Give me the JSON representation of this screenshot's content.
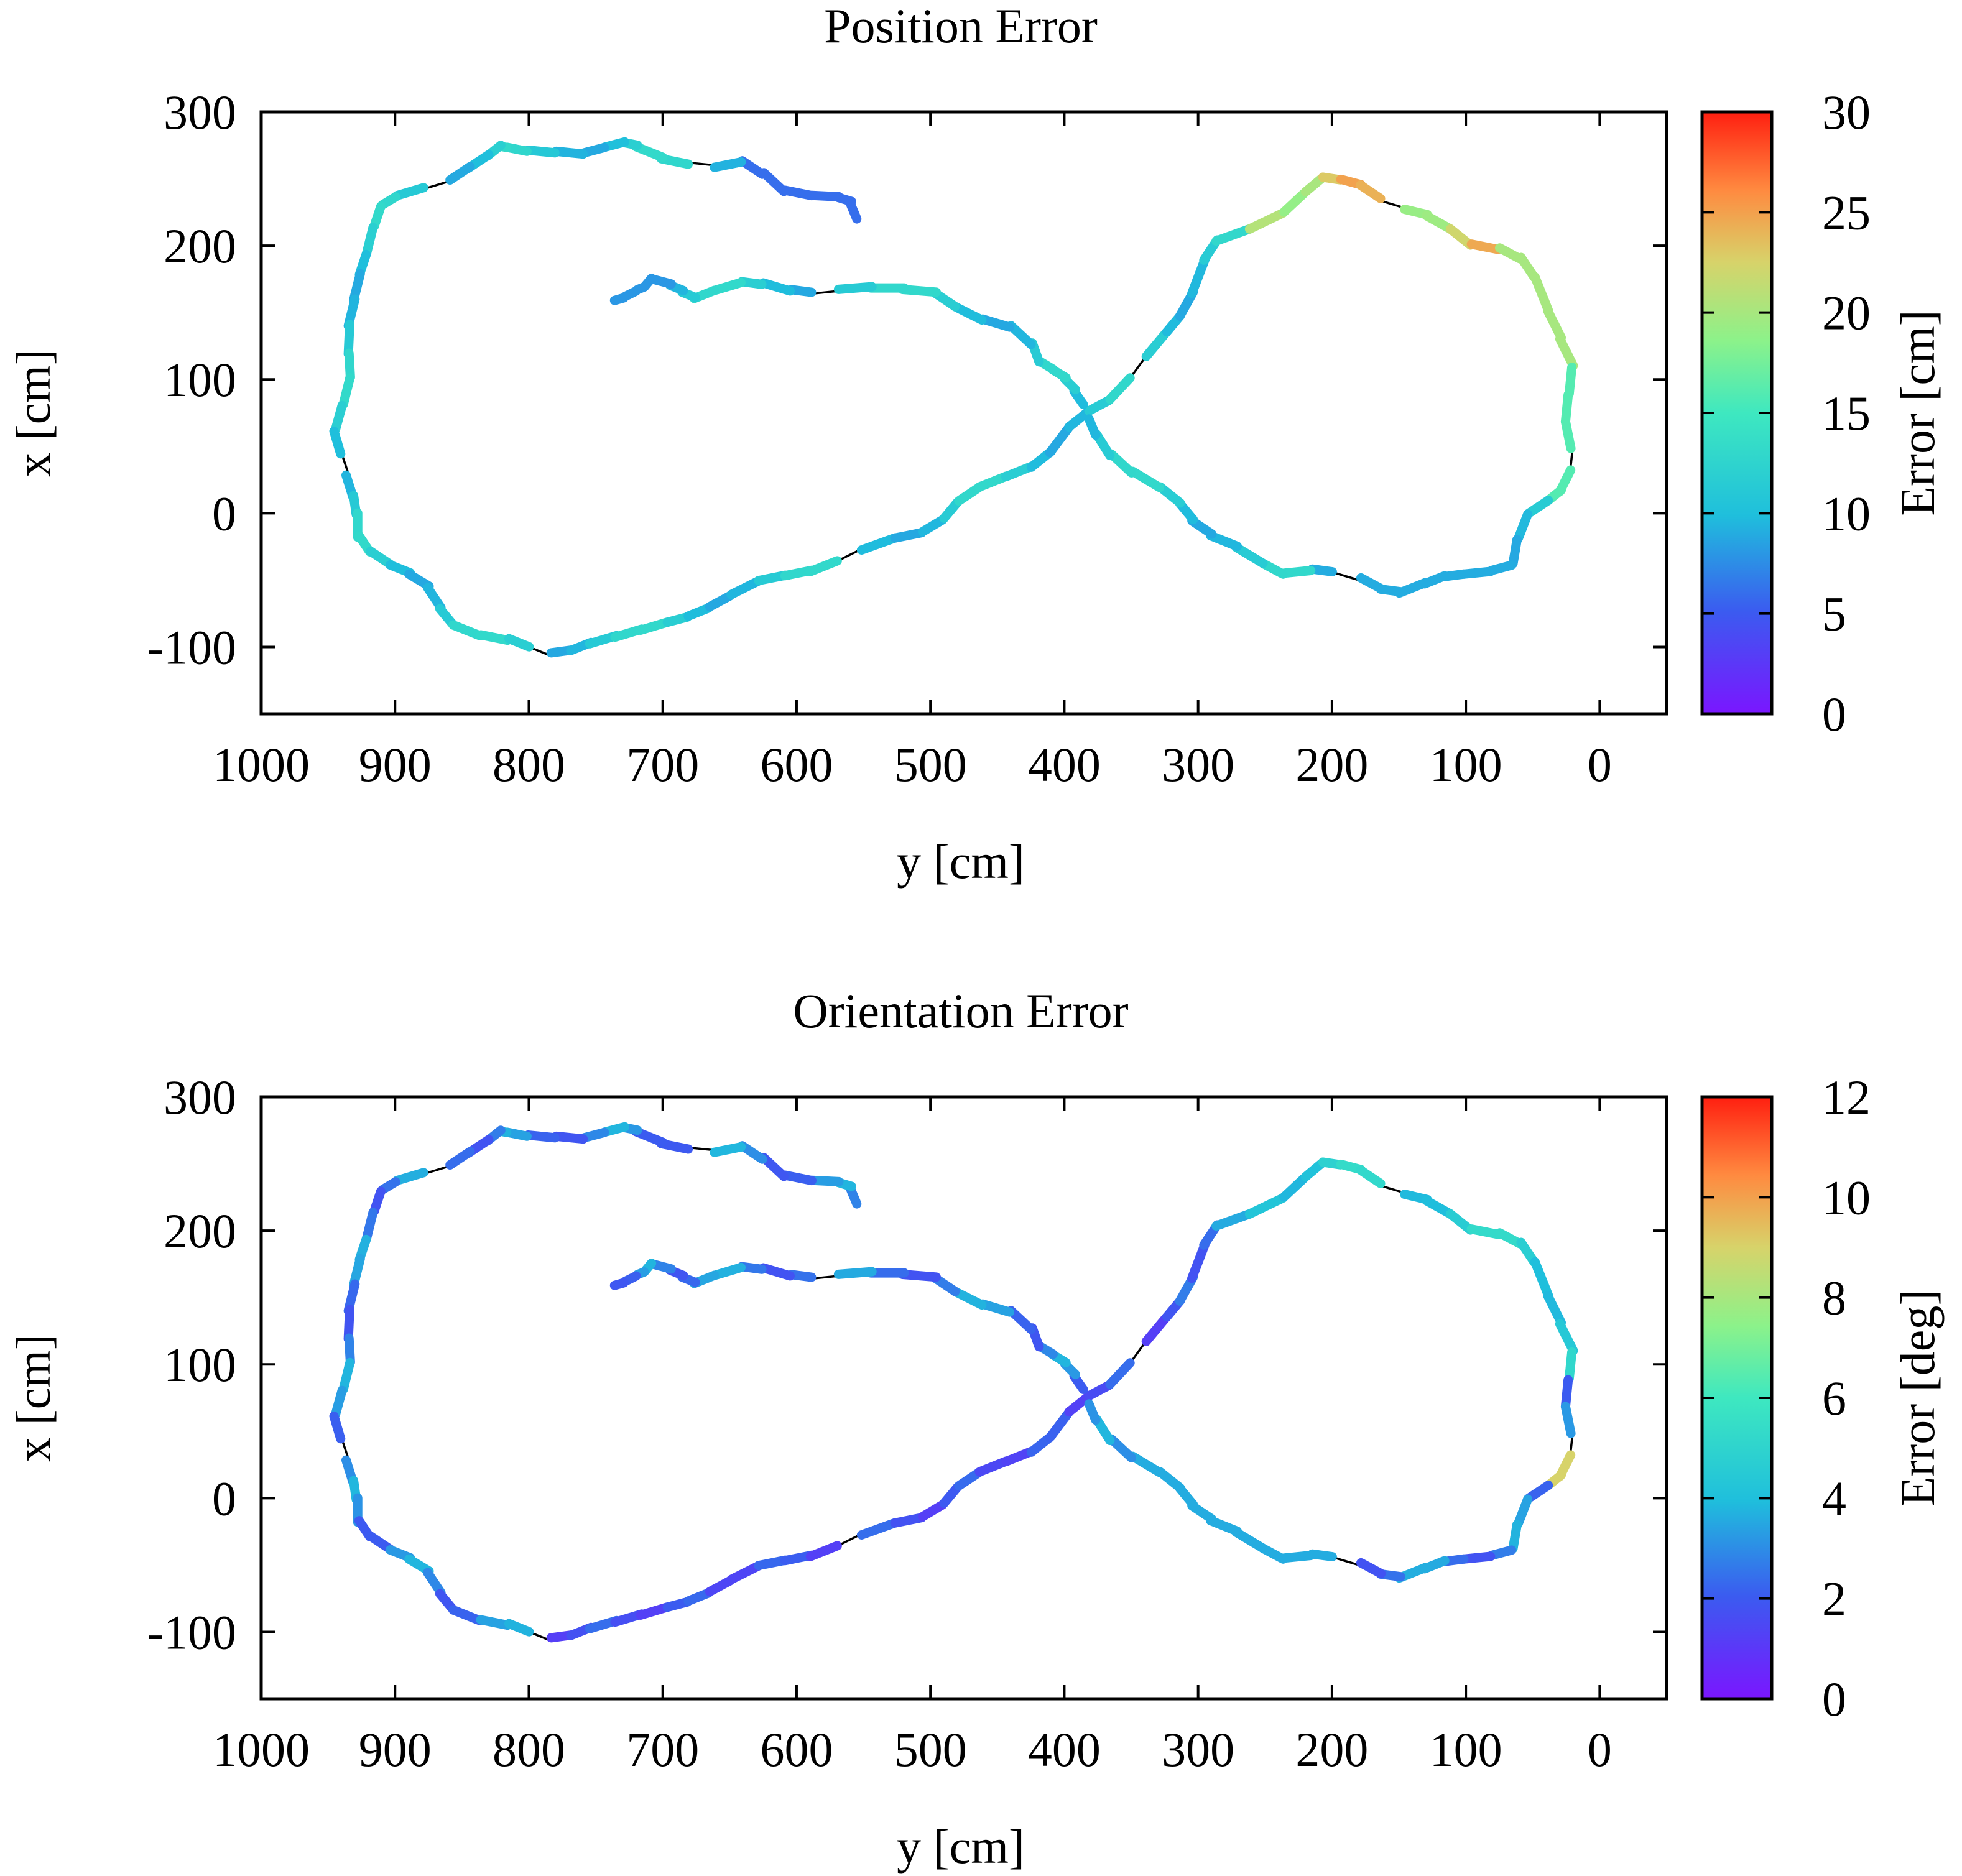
{
  "chart_data": [
    {
      "type": "scatter",
      "title": "Position Error",
      "xlabel": "y [cm]",
      "ylabel": "x [cm]",
      "xlim": [
        1000,
        -50
      ],
      "ylim": [
        -150,
        300
      ],
      "xticks": [
        "1000",
        "900",
        "800",
        "700",
        "600",
        "500",
        "400",
        "300",
        "200",
        "100",
        "0"
      ],
      "yticks": [
        "300",
        "200",
        "100",
        "0",
        "-100"
      ],
      "colorbar": {
        "label": "Error [cm]",
        "range": [
          0,
          30
        ],
        "ticks": [
          "30",
          "25",
          "20",
          "15",
          "10",
          "5",
          "0"
        ]
      },
      "series": [
        {
          "name": "ground truth path",
          "style": "thin black line",
          "shape": "figure-eight trajectory"
        },
        {
          "name": "estimated path colored by position error",
          "segments": [
            {
              "from_y": 555,
              "to_y": 730,
              "x_range": [
                160,
                280
              ],
              "error": 10
            },
            {
              "from_y": 730,
              "to_y": 940,
              "x_range": [
                -110,
                280
              ],
              "error": 10
            },
            {
              "from_y": 780,
              "to_y": 380,
              "x_range": [
                -110,
                90
              ],
              "error": 12
            },
            {
              "from_y": 380,
              "to_y": 220,
              "x_range": [
                90,
                255
              ],
              "error": 14
            },
            {
              "from_y": 210,
              "to_y": 100,
              "x_range": [
                200,
                255
              ],
              "error": 24
            },
            {
              "from_y": 100,
              "to_y": 60,
              "x_range": [
                180,
                200
              ],
              "error": 22
            },
            {
              "from_y": 60,
              "to_y": 15,
              "x_range": [
                -60,
                180
              ],
              "error": 12
            },
            {
              "from_y": 15,
              "to_y": 380,
              "x_range": [
                -60,
                90
              ],
              "error": 9
            },
            {
              "from_y": 380,
              "to_y": 730,
              "x_range": [
                90,
                175
              ],
              "error": 9
            }
          ]
        }
      ]
    },
    {
      "type": "scatter",
      "title": "Orientation Error",
      "xlabel": "y [cm]",
      "ylabel": "x [cm]",
      "xlim": [
        1000,
        -50
      ],
      "ylim": [
        -150,
        300
      ],
      "xticks": [
        "1000",
        "900",
        "800",
        "700",
        "600",
        "500",
        "400",
        "300",
        "200",
        "100",
        "0"
      ],
      "yticks": [
        "300",
        "200",
        "100",
        "0",
        "-100"
      ],
      "colorbar": {
        "label": "Error [deg]",
        "range": [
          0,
          12
        ],
        "ticks": [
          "12",
          "10",
          "8",
          "6",
          "4",
          "2",
          "0"
        ]
      },
      "series": [
        {
          "name": "ground truth path",
          "style": "thin black line",
          "shape": "figure-eight trajectory"
        },
        {
          "name": "estimated path colored by orientation error",
          "segments": [
            {
              "from_y": 555,
              "to_y": 730,
              "x_range": [
                160,
                280
              ],
              "error": 2.5
            },
            {
              "from_y": 730,
              "to_y": 940,
              "x_range": [
                -110,
                280
              ],
              "error": 3
            },
            {
              "from_y": 780,
              "to_y": 380,
              "x_range": [
                -110,
                90
              ],
              "error": 1.5
            },
            {
              "from_y": 380,
              "to_y": 220,
              "x_range": [
                90,
                255
              ],
              "error": 2.5
            },
            {
              "from_y": 210,
              "to_y": 60,
              "x_range": [
                180,
                255
              ],
              "error": 4.5
            },
            {
              "from_y": 60,
              "to_y": 15,
              "x_range": [
                30,
                180
              ],
              "error": 4
            },
            {
              "from_y": 20,
              "to_y": 20,
              "x_range": [
                40,
                55
              ],
              "error": 9
            },
            {
              "from_y": 15,
              "to_y": 380,
              "x_range": [
                -60,
                90
              ],
              "error": 3.5
            },
            {
              "from_y": 380,
              "to_y": 730,
              "x_range": [
                90,
                175
              ],
              "error": 2.5
            }
          ]
        }
      ]
    }
  ]
}
